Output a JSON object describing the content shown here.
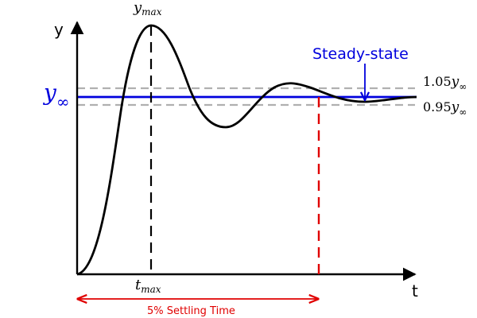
{
  "axes": {
    "y_label": "y",
    "x_label": "t"
  },
  "labels": {
    "ymax_base": "y",
    "ymax_sub": "max",
    "tmax_base": "t",
    "tmax_sub": "max",
    "yinf_base": "y",
    "yinf_sub": "∞",
    "upper_coef": "1.05",
    "upper_base": "y",
    "upper_sub": "∞",
    "lower_coef": "0.95",
    "lower_base": "y",
    "lower_sub": "∞",
    "steady_state": "Steady-state",
    "settling_time": "5% Settling Time"
  },
  "colors": {
    "response": "#000000",
    "steady_state": "#0000dd",
    "settling": "#e00000",
    "band": "#b0b0b0"
  }
}
